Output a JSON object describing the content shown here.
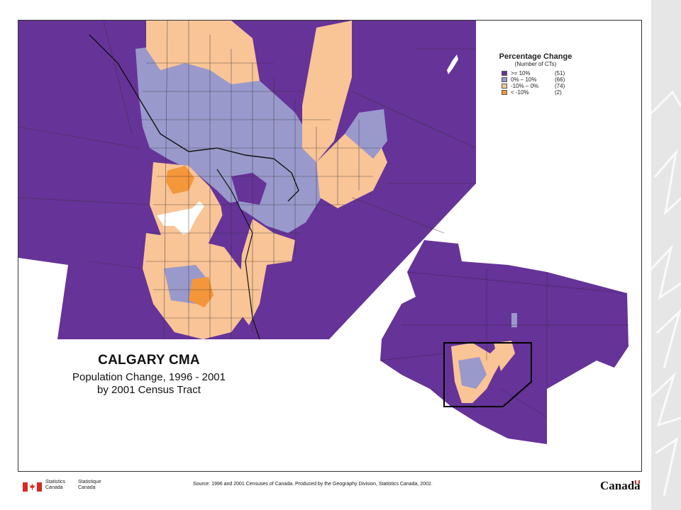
{
  "title": {
    "line1": "CALGARY CMA",
    "line2": "Population Change, 1996 - 2001",
    "line3": "by 2001 Census Tract"
  },
  "legend": {
    "title": "Percentage Change",
    "subtitle": "(Number of CTs)",
    "items": [
      {
        "label": ">= 10%",
        "count": "(51)",
        "color": "#663399"
      },
      {
        "label": "0% – 10%",
        "count": "(66)",
        "color": "#9999cc"
      },
      {
        "label": "-10% – 0%",
        "count": "(74)",
        "color": "#f9c496"
      },
      {
        "label": "< -10%",
        "count": "(2)",
        "color": "#f4963a"
      }
    ]
  },
  "footer": {
    "agency_en": [
      "Statistics",
      "Canada"
    ],
    "agency_fr": [
      "Statistique",
      "Canada"
    ],
    "source": "Source: 1996 and 2001 Censuses of Canada. Produced by the Geography Division, Statistics Canada, 2002.",
    "wordmark": "Canada"
  },
  "colors": {
    "high": "#663399",
    "mid": "#9999cc",
    "low": "#f9c496",
    "lowest": "#f4963a",
    "boundary": "#222222",
    "flag_red": "#d52b1e"
  }
}
